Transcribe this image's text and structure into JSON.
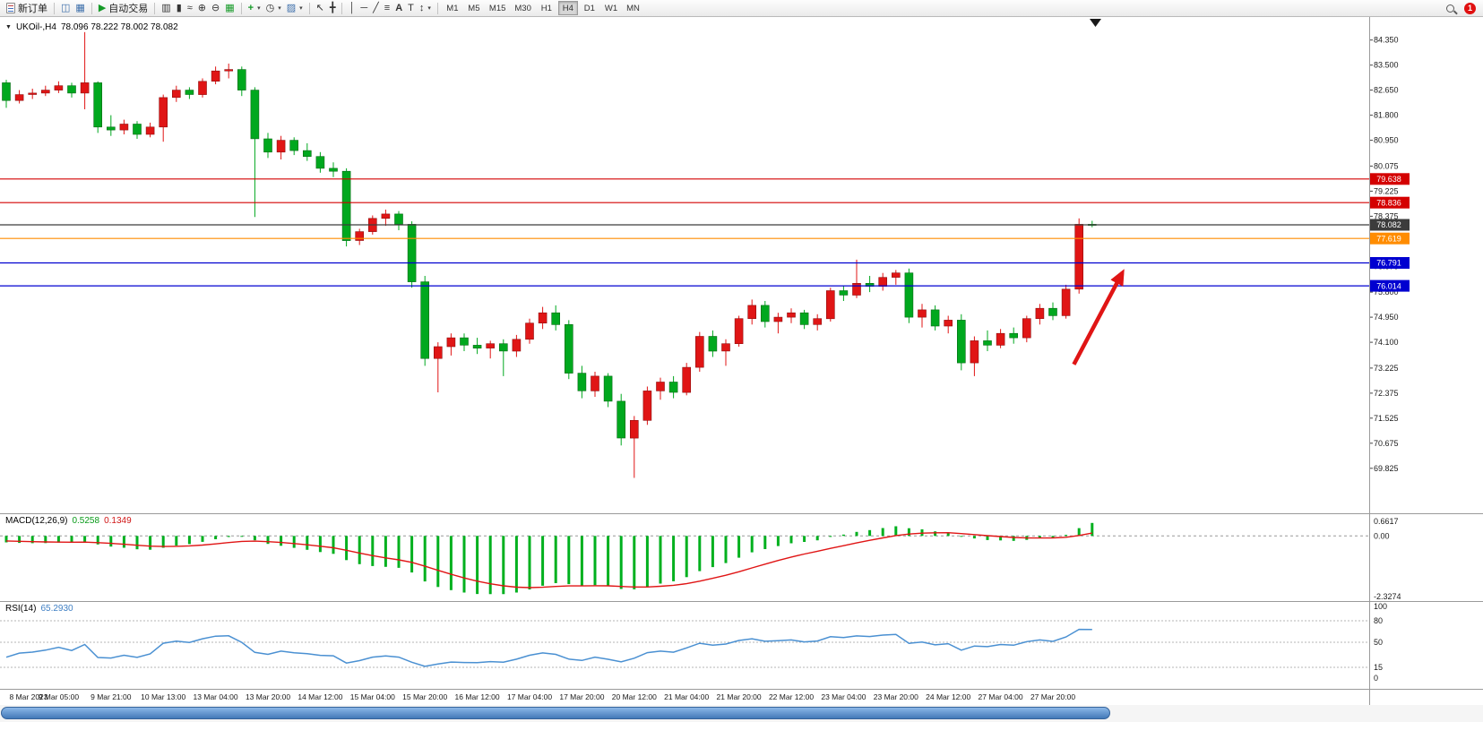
{
  "toolbar": {
    "new_order_label": "新订单",
    "auto_trading_label": "自动交易",
    "timeframes": [
      "M1",
      "M5",
      "M15",
      "M30",
      "H1",
      "H4",
      "D1",
      "W1",
      "MN"
    ],
    "active_timeframe": "H4",
    "notification_count": "1",
    "icons": {
      "chart_window": "◫",
      "profiles": "▦",
      "autotrading_play": "▶",
      "bar_chart": "▥",
      "candlestick_chart": "▮",
      "line_chart": "≈",
      "zoom_in": "⊕",
      "zoom_out": "⊖",
      "tile_windows": "▦",
      "indicators_plus": "+",
      "periods_clock": "◷",
      "templates": "▨",
      "cursor": "↖",
      "crosshair": "╋",
      "vertical_line": "│",
      "horizontal_line": "─",
      "trendline": "╱",
      "fibonacci": "≡",
      "text": "A",
      "text_label": "T",
      "arrows": "↕",
      "caret": "▾",
      "collapse": "▼"
    }
  },
  "chart_data": {
    "type": "candlestick",
    "symbol": "UKOil-",
    "period": "H4",
    "readout": {
      "symbol_period": "UKOil-,H4",
      "values": "78.096 78.222 78.002 78.082"
    },
    "bull_color": "#e01515",
    "bear_color": "#00a81e",
    "price_axis_ticks": [
      "84.350",
      "83.500",
      "82.650",
      "81.800",
      "80.950",
      "80.075",
      "79.225",
      "78.375",
      "77.525",
      "76.675",
      "75.800",
      "74.950",
      "74.100",
      "73.225",
      "72.375",
      "71.525",
      "70.675",
      "69.825"
    ],
    "time_labels": [
      "8 Mar 2023",
      "9 Mar 05:00",
      "9 Mar 21:00",
      "10 Mar 13:00",
      "13 Mar 04:00",
      "13 Mar 20:00",
      "14 Mar 12:00",
      "15 Mar 04:00",
      "15 Mar 20:00",
      "16 Mar 12:00",
      "17 Mar 04:00",
      "17 Mar 20:00",
      "20 Mar 12:00",
      "21 Mar 04:00",
      "21 Mar 20:00",
      "22 Mar 12:00",
      "23 Mar 04:00",
      "23 Mar 20:00",
      "24 Mar 12:00",
      "27 Mar 04:00",
      "27 Mar 20:00"
    ],
    "bars_per_label": 4,
    "candles": [
      [
        82.9,
        83.0,
        82.05,
        82.3
      ],
      [
        82.3,
        82.65,
        82.2,
        82.5
      ],
      [
        82.5,
        82.7,
        82.35,
        82.55
      ],
      [
        82.55,
        82.8,
        82.45,
        82.65
      ],
      [
        82.65,
        82.95,
        82.55,
        82.8
      ],
      [
        82.8,
        82.9,
        82.4,
        82.55
      ],
      [
        82.55,
        84.65,
        82.0,
        82.9
      ],
      [
        82.9,
        82.95,
        81.2,
        81.4
      ],
      [
        81.4,
        81.8,
        81.1,
        81.3
      ],
      [
        81.3,
        81.65,
        81.15,
        81.5
      ],
      [
        81.5,
        81.6,
        81.0,
        81.15
      ],
      [
        81.15,
        81.55,
        81.05,
        81.4
      ],
      [
        81.4,
        82.5,
        80.9,
        82.4
      ],
      [
        82.4,
        82.8,
        82.25,
        82.65
      ],
      [
        82.65,
        82.75,
        82.35,
        82.5
      ],
      [
        82.5,
        83.05,
        82.4,
        82.95
      ],
      [
        82.95,
        83.45,
        82.85,
        83.3
      ],
      [
        83.3,
        83.55,
        83.05,
        83.35
      ],
      [
        83.35,
        83.45,
        82.45,
        82.65
      ],
      [
        82.65,
        82.75,
        78.35,
        81.0
      ],
      [
        81.0,
        81.2,
        80.35,
        80.55
      ],
      [
        80.55,
        81.1,
        80.3,
        80.95
      ],
      [
        80.95,
        81.05,
        80.45,
        80.6
      ],
      [
        80.6,
        80.85,
        80.25,
        80.4
      ],
      [
        80.4,
        80.55,
        79.85,
        80.0
      ],
      [
        80.0,
        80.2,
        79.7,
        79.9
      ],
      [
        79.9,
        80.0,
        77.35,
        77.55
      ],
      [
        77.55,
        77.95,
        77.4,
        77.85
      ],
      [
        77.85,
        78.4,
        77.75,
        78.3
      ],
      [
        78.3,
        78.6,
        78.05,
        78.45
      ],
      [
        78.45,
        78.55,
        77.9,
        78.1
      ],
      [
        78.1,
        78.2,
        75.95,
        76.15
      ],
      [
        76.15,
        76.35,
        73.3,
        73.55
      ],
      [
        73.55,
        74.1,
        72.4,
        73.95
      ],
      [
        73.95,
        74.4,
        73.65,
        74.25
      ],
      [
        74.25,
        74.4,
        73.8,
        74.0
      ],
      [
        74.0,
        74.25,
        73.7,
        73.9
      ],
      [
        73.9,
        74.15,
        73.55,
        74.05
      ],
      [
        74.05,
        74.2,
        72.95,
        73.8
      ],
      [
        73.8,
        74.35,
        73.6,
        74.2
      ],
      [
        74.2,
        74.9,
        74.05,
        74.75
      ],
      [
        74.75,
        75.3,
        74.55,
        75.1
      ],
      [
        75.1,
        75.35,
        74.5,
        74.7
      ],
      [
        74.7,
        74.85,
        72.85,
        73.05
      ],
      [
        73.05,
        73.3,
        72.2,
        72.45
      ],
      [
        72.45,
        73.1,
        72.25,
        72.95
      ],
      [
        72.95,
        73.05,
        71.9,
        72.1
      ],
      [
        72.1,
        72.35,
        70.6,
        70.85
      ],
      [
        70.85,
        71.6,
        69.5,
        71.45
      ],
      [
        71.45,
        72.6,
        71.3,
        72.45
      ],
      [
        72.45,
        72.9,
        72.15,
        72.75
      ],
      [
        72.75,
        72.95,
        72.2,
        72.4
      ],
      [
        72.4,
        73.4,
        72.3,
        73.25
      ],
      [
        73.25,
        74.45,
        73.1,
        74.3
      ],
      [
        74.3,
        74.5,
        73.6,
        73.8
      ],
      [
        73.8,
        74.2,
        73.3,
        74.05
      ],
      [
        74.05,
        75.0,
        73.95,
        74.9
      ],
      [
        74.9,
        75.55,
        74.7,
        75.35
      ],
      [
        75.35,
        75.5,
        74.6,
        74.8
      ],
      [
        74.8,
        75.1,
        74.4,
        74.95
      ],
      [
        74.95,
        75.25,
        74.75,
        75.1
      ],
      [
        75.1,
        75.2,
        74.55,
        74.7
      ],
      [
        74.7,
        75.05,
        74.5,
        74.9
      ],
      [
        74.9,
        75.95,
        74.8,
        75.85
      ],
      [
        75.85,
        76.0,
        75.5,
        75.7
      ],
      [
        75.7,
        76.9,
        75.6,
        76.1
      ],
      [
        76.1,
        76.35,
        75.8,
        76.0
      ],
      [
        76.0,
        76.45,
        75.85,
        76.3
      ],
      [
        76.3,
        76.55,
        76.05,
        76.45
      ],
      [
        76.45,
        76.6,
        74.75,
        74.95
      ],
      [
        74.95,
        75.4,
        74.6,
        75.2
      ],
      [
        75.2,
        75.35,
        74.5,
        74.65
      ],
      [
        74.65,
        75.0,
        74.4,
        74.85
      ],
      [
        74.85,
        75.05,
        73.15,
        73.4
      ],
      [
        73.4,
        74.3,
        72.95,
        74.15
      ],
      [
        74.15,
        74.5,
        73.8,
        74.0
      ],
      [
        74.0,
        74.55,
        73.9,
        74.4
      ],
      [
        74.4,
        74.6,
        74.05,
        74.25
      ],
      [
        74.25,
        75.0,
        74.1,
        74.9
      ],
      [
        74.9,
        75.4,
        74.7,
        75.25
      ],
      [
        75.25,
        75.45,
        74.85,
        75.0
      ],
      [
        75.0,
        76.05,
        74.9,
        75.9
      ],
      [
        75.9,
        78.3,
        75.75,
        78.1
      ],
      [
        78.1,
        78.22,
        78.0,
        78.08
      ]
    ],
    "hlines": [
      {
        "price": 79.638,
        "label": "79.638",
        "color": "#d40000",
        "name": "resistance-line-79638"
      },
      {
        "price": 78.836,
        "label": "78.836",
        "color": "#d40000",
        "name": "resistance-line-78836"
      },
      {
        "price": 78.082,
        "label": "78.082",
        "color": "#3c3c3c",
        "name": "last-price-line"
      },
      {
        "price": 77.619,
        "label": "77.619",
        "color": "#ff8c00",
        "name": "level-line-77619"
      },
      {
        "price": 76.791,
        "label": "76.791",
        "color": "#0000d0",
        "name": "support-line-76791"
      },
      {
        "price": 76.014,
        "label": "76.014",
        "color": "#0000d0",
        "name": "support-line-76014"
      }
    ],
    "arrow_annotation": {
      "from_bar": 81.6,
      "from_price": 73.35,
      "to_bar": 85.3,
      "to_price": 76.45,
      "color": "#e01515"
    },
    "macd": {
      "name": "MACD(12,26,9)",
      "main_value": "0.5258",
      "signal_value": "0.1349",
      "axis_max": "0.6617",
      "axis_zero": "0.00",
      "axis_min": "-2.3274",
      "hist_color": "#00b01e",
      "signal_color": "#e01515"
    },
    "rsi": {
      "name": "RSI(14)",
      "value": "65.2930",
      "levels": [
        80,
        50,
        15
      ],
      "axis_labels": [
        "100",
        "80",
        "50",
        "15",
        "0"
      ],
      "line_color": "#4a90d2"
    }
  }
}
